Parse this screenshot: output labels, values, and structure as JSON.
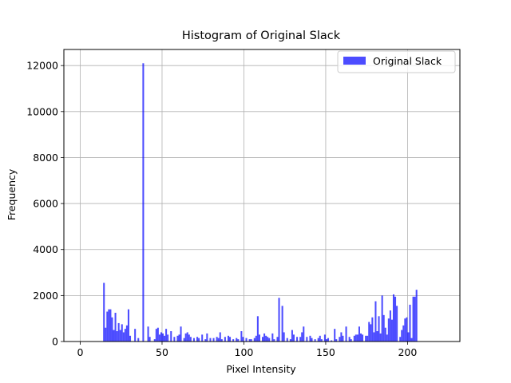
{
  "chart_data": {
    "type": "bar",
    "title": "Histogram of Original Slack",
    "xlabel": "Pixel Intensity",
    "ylabel": "Frequency",
    "xlim": [
      -10,
      232
    ],
    "ylim": [
      0,
      12700
    ],
    "xticks": [
      0,
      50,
      100,
      150,
      200
    ],
    "yticks": [
      0,
      2000,
      4000,
      6000,
      8000,
      10000,
      12000
    ],
    "grid": true,
    "legend_position": "top-right",
    "bin_width": 1,
    "series": [
      {
        "name": "Original Slack",
        "color": "#0000ff",
        "opacity": 0.7,
        "points": [
          {
            "x": 14,
            "y": 2550
          },
          {
            "x": 15,
            "y": 600
          },
          {
            "x": 16,
            "y": 1300
          },
          {
            "x": 17,
            "y": 1400
          },
          {
            "x": 18,
            "y": 1400
          },
          {
            "x": 19,
            "y": 1050
          },
          {
            "x": 20,
            "y": 500
          },
          {
            "x": 21,
            "y": 1250
          },
          {
            "x": 22,
            "y": 450
          },
          {
            "x": 23,
            "y": 800
          },
          {
            "x": 24,
            "y": 500
          },
          {
            "x": 25,
            "y": 750
          },
          {
            "x": 26,
            "y": 400
          },
          {
            "x": 27,
            "y": 550
          },
          {
            "x": 28,
            "y": 700
          },
          {
            "x": 29,
            "y": 1400
          },
          {
            "x": 30,
            "y": 250
          },
          {
            "x": 33,
            "y": 550
          },
          {
            "x": 35,
            "y": 150
          },
          {
            "x": 38,
            "y": 12100
          },
          {
            "x": 41,
            "y": 650
          },
          {
            "x": 42,
            "y": 200
          },
          {
            "x": 45,
            "y": 100
          },
          {
            "x": 46,
            "y": 550
          },
          {
            "x": 47,
            "y": 600
          },
          {
            "x": 48,
            "y": 300
          },
          {
            "x": 49,
            "y": 400
          },
          {
            "x": 50,
            "y": 350
          },
          {
            "x": 51,
            "y": 250
          },
          {
            "x": 52,
            "y": 550
          },
          {
            "x": 53,
            "y": 300
          },
          {
            "x": 55,
            "y": 450
          },
          {
            "x": 57,
            "y": 200
          },
          {
            "x": 59,
            "y": 250
          },
          {
            "x": 60,
            "y": 300
          },
          {
            "x": 61,
            "y": 650
          },
          {
            "x": 63,
            "y": 150
          },
          {
            "x": 64,
            "y": 350
          },
          {
            "x": 65,
            "y": 400
          },
          {
            "x": 66,
            "y": 300
          },
          {
            "x": 67,
            "y": 200
          },
          {
            "x": 69,
            "y": 150
          },
          {
            "x": 71,
            "y": 200
          },
          {
            "x": 72,
            "y": 150
          },
          {
            "x": 74,
            "y": 300
          },
          {
            "x": 76,
            "y": 100
          },
          {
            "x": 77,
            "y": 350
          },
          {
            "x": 79,
            "y": 150
          },
          {
            "x": 81,
            "y": 150
          },
          {
            "x": 83,
            "y": 200
          },
          {
            "x": 84,
            "y": 150
          },
          {
            "x": 85,
            "y": 400
          },
          {
            "x": 86,
            "y": 100
          },
          {
            "x": 88,
            "y": 200
          },
          {
            "x": 90,
            "y": 250
          },
          {
            "x": 91,
            "y": 200
          },
          {
            "x": 93,
            "y": 100
          },
          {
            "x": 95,
            "y": 150
          },
          {
            "x": 96,
            "y": 100
          },
          {
            "x": 98,
            "y": 450
          },
          {
            "x": 99,
            "y": 200
          },
          {
            "x": 101,
            "y": 150
          },
          {
            "x": 103,
            "y": 100
          },
          {
            "x": 104,
            "y": 100
          },
          {
            "x": 106,
            "y": 150
          },
          {
            "x": 107,
            "y": 250
          },
          {
            "x": 108,
            "y": 1100
          },
          {
            "x": 109,
            "y": 300
          },
          {
            "x": 111,
            "y": 200
          },
          {
            "x": 112,
            "y": 350
          },
          {
            "x": 113,
            "y": 250
          },
          {
            "x": 114,
            "y": 200
          },
          {
            "x": 115,
            "y": 150
          },
          {
            "x": 117,
            "y": 350
          },
          {
            "x": 118,
            "y": 100
          },
          {
            "x": 120,
            "y": 200
          },
          {
            "x": 121,
            "y": 1900
          },
          {
            "x": 123,
            "y": 1550
          },
          {
            "x": 124,
            "y": 400
          },
          {
            "x": 126,
            "y": 150
          },
          {
            "x": 128,
            "y": 100
          },
          {
            "x": 129,
            "y": 500
          },
          {
            "x": 130,
            "y": 300
          },
          {
            "x": 132,
            "y": 200
          },
          {
            "x": 134,
            "y": 200
          },
          {
            "x": 135,
            "y": 400
          },
          {
            "x": 136,
            "y": 650
          },
          {
            "x": 138,
            "y": 200
          },
          {
            "x": 140,
            "y": 250
          },
          {
            "x": 141,
            "y": 150
          },
          {
            "x": 143,
            "y": 100
          },
          {
            "x": 145,
            "y": 150
          },
          {
            "x": 146,
            "y": 250
          },
          {
            "x": 147,
            "y": 100
          },
          {
            "x": 149,
            "y": 300
          },
          {
            "x": 150,
            "y": 100
          },
          {
            "x": 151,
            "y": 150
          },
          {
            "x": 153,
            "y": 50
          },
          {
            "x": 155,
            "y": 550
          },
          {
            "x": 156,
            "y": 100
          },
          {
            "x": 158,
            "y": 200
          },
          {
            "x": 159,
            "y": 400
          },
          {
            "x": 160,
            "y": 250
          },
          {
            "x": 162,
            "y": 650
          },
          {
            "x": 164,
            "y": 200
          },
          {
            "x": 165,
            "y": 100
          },
          {
            "x": 167,
            "y": 250
          },
          {
            "x": 168,
            "y": 300
          },
          {
            "x": 169,
            "y": 300
          },
          {
            "x": 170,
            "y": 650
          },
          {
            "x": 171,
            "y": 350
          },
          {
            "x": 172,
            "y": 300
          },
          {
            "x": 174,
            "y": 250
          },
          {
            "x": 175,
            "y": 250
          },
          {
            "x": 176,
            "y": 850
          },
          {
            "x": 177,
            "y": 750
          },
          {
            "x": 178,
            "y": 1050
          },
          {
            "x": 179,
            "y": 400
          },
          {
            "x": 180,
            "y": 1750
          },
          {
            "x": 181,
            "y": 450
          },
          {
            "x": 182,
            "y": 1100
          },
          {
            "x": 183,
            "y": 350
          },
          {
            "x": 184,
            "y": 2000
          },
          {
            "x": 185,
            "y": 1150
          },
          {
            "x": 186,
            "y": 600
          },
          {
            "x": 187,
            "y": 300
          },
          {
            "x": 188,
            "y": 1000
          },
          {
            "x": 189,
            "y": 1350
          },
          {
            "x": 190,
            "y": 950
          },
          {
            "x": 191,
            "y": 2050
          },
          {
            "x": 192,
            "y": 1950
          },
          {
            "x": 193,
            "y": 1550
          },
          {
            "x": 195,
            "y": 200
          },
          {
            "x": 196,
            "y": 500
          },
          {
            "x": 197,
            "y": 700
          },
          {
            "x": 198,
            "y": 1000
          },
          {
            "x": 199,
            "y": 1050
          },
          {
            "x": 200,
            "y": 400
          },
          {
            "x": 201,
            "y": 1600
          },
          {
            "x": 202,
            "y": 150
          },
          {
            "x": 203,
            "y": 1950
          },
          {
            "x": 204,
            "y": 1950
          },
          {
            "x": 205,
            "y": 2250
          }
        ]
      }
    ]
  }
}
